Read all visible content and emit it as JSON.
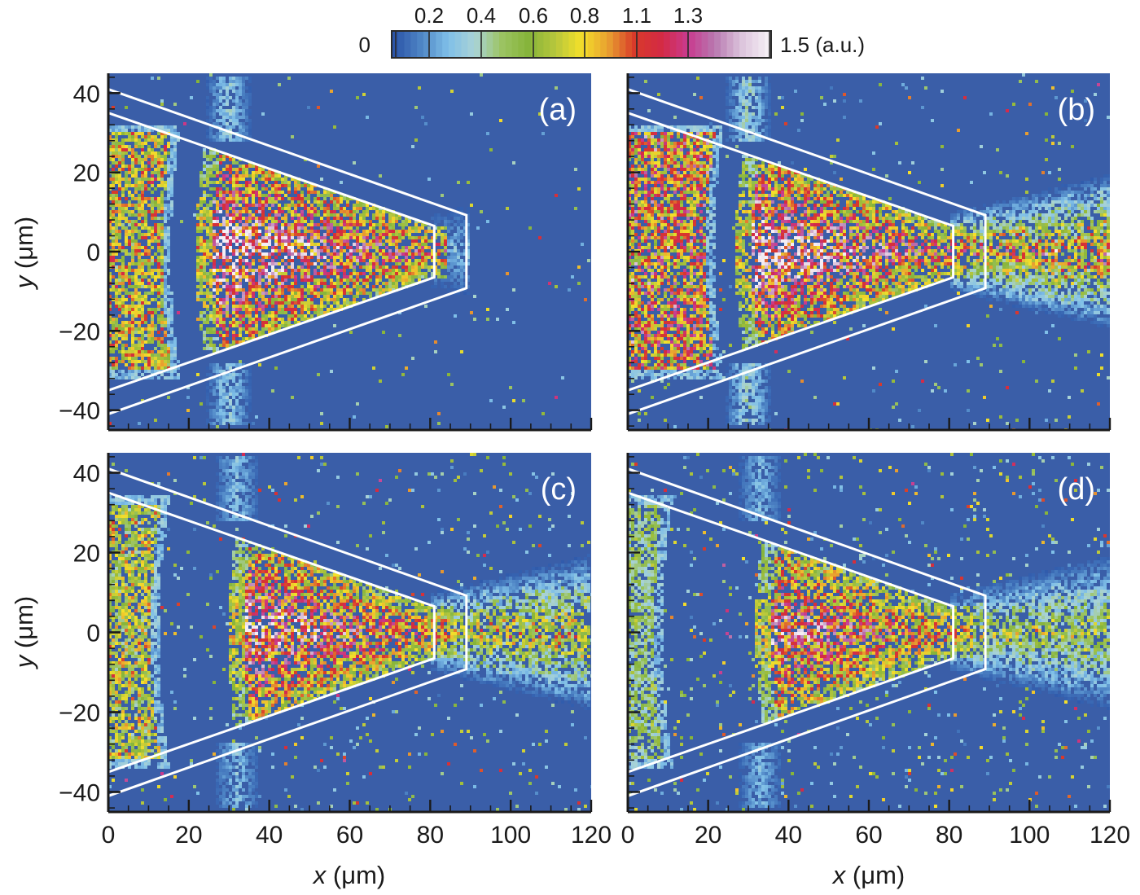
{
  "chart_data": {
    "type": "heatmap",
    "title": "",
    "layout": "2x2 grid of density maps",
    "colorbar": {
      "min_label": "0",
      "max_label": "1.5 (a.u.)",
      "tick_labels": [
        "0.2",
        "0.4",
        "0.6",
        "0.8",
        "1.1",
        "1.3"
      ],
      "range": [
        0,
        1.5
      ],
      "colors": [
        "#2c55a8",
        "#4f86c6",
        "#7fbfe8",
        "#a9d3d6",
        "#9cc463",
        "#86b43a",
        "#b5c63c",
        "#f4e02a",
        "#e8a030",
        "#d83a2a",
        "#d42a44",
        "#c93a8e",
        "#b878b0",
        "#dcc4dc",
        "#f4eef4"
      ]
    },
    "xlabel": "x (μm)",
    "ylabel": "y (μm)",
    "xlim": [
      0,
      120
    ],
    "ylim": [
      -45,
      45
    ],
    "xticks": [
      "0",
      "20",
      "40",
      "60",
      "80",
      "100",
      "120"
    ],
    "yticks": [
      "40",
      "20",
      "0",
      "−20",
      "−40"
    ],
    "xtick_values": [
      0,
      20,
      40,
      60,
      80,
      100,
      120
    ],
    "ytick_values": [
      40,
      20,
      0,
      -20,
      -40
    ],
    "target_outline": {
      "outer": [
        [
          0,
          41
        ],
        [
          89,
          9.2
        ],
        [
          89,
          -9.2
        ],
        [
          0,
          -41
        ]
      ],
      "inner": [
        [
          0,
          35
        ],
        [
          81,
          6.5
        ],
        [
          81,
          -6.5
        ],
        [
          0,
          -35
        ]
      ]
    },
    "panels": [
      {
        "label": "(a)",
        "background_color": "#3a5ea8",
        "front_bulk": {
          "x_end": 16,
          "y_half": 30,
          "intensity": 0.9
        },
        "gap": {
          "x_start": 17,
          "x_end": 25
        },
        "compressed_region": {
          "x_start": 25,
          "x_end": 84,
          "peak_intensity": 1.5
        },
        "jet": {
          "x_end": 90,
          "intensity": 0.3
        },
        "halo_at_wall": {
          "x": 30,
          "intensity": 0.3
        }
      },
      {
        "label": "(b)",
        "background_color": "#3a5ea8",
        "front_bulk": {
          "x_end": 22,
          "y_half": 30,
          "intensity": 1.1
        },
        "gap": {
          "x_start": 22,
          "x_end": 30
        },
        "compressed_region": {
          "x_start": 30,
          "x_end": 84,
          "peak_intensity": 1.5
        },
        "jet": {
          "x_end": 120,
          "intensity": 1.2
        },
        "halo_at_wall": {
          "x": 30,
          "intensity": 0.35
        }
      },
      {
        "label": "(c)",
        "background_color": "#3a5ea8",
        "front_bulk": {
          "x_end": 13,
          "y_half": 32,
          "intensity": 0.8
        },
        "gap": {
          "x_start": 14,
          "x_end": 33
        },
        "compressed_region": {
          "x_start": 33,
          "x_end": 86,
          "peak_intensity": 1.4
        },
        "jet": {
          "x_end": 120,
          "intensity": 1.0
        },
        "halo_at_wall": {
          "x": 32,
          "intensity": 0.25
        }
      },
      {
        "label": "(d)",
        "background_color": "#3a5ea8",
        "front_bulk": {
          "x_end": 9,
          "y_half": 32,
          "intensity": 0.55
        },
        "gap": {
          "x_start": 10,
          "x_end": 35
        },
        "compressed_region": {
          "x_start": 35,
          "x_end": 86,
          "peak_intensity": 1.3
        },
        "jet": {
          "x_end": 120,
          "intensity": 0.8
        },
        "halo_at_wall": {
          "x": 33,
          "intensity": 0.22
        }
      }
    ]
  }
}
